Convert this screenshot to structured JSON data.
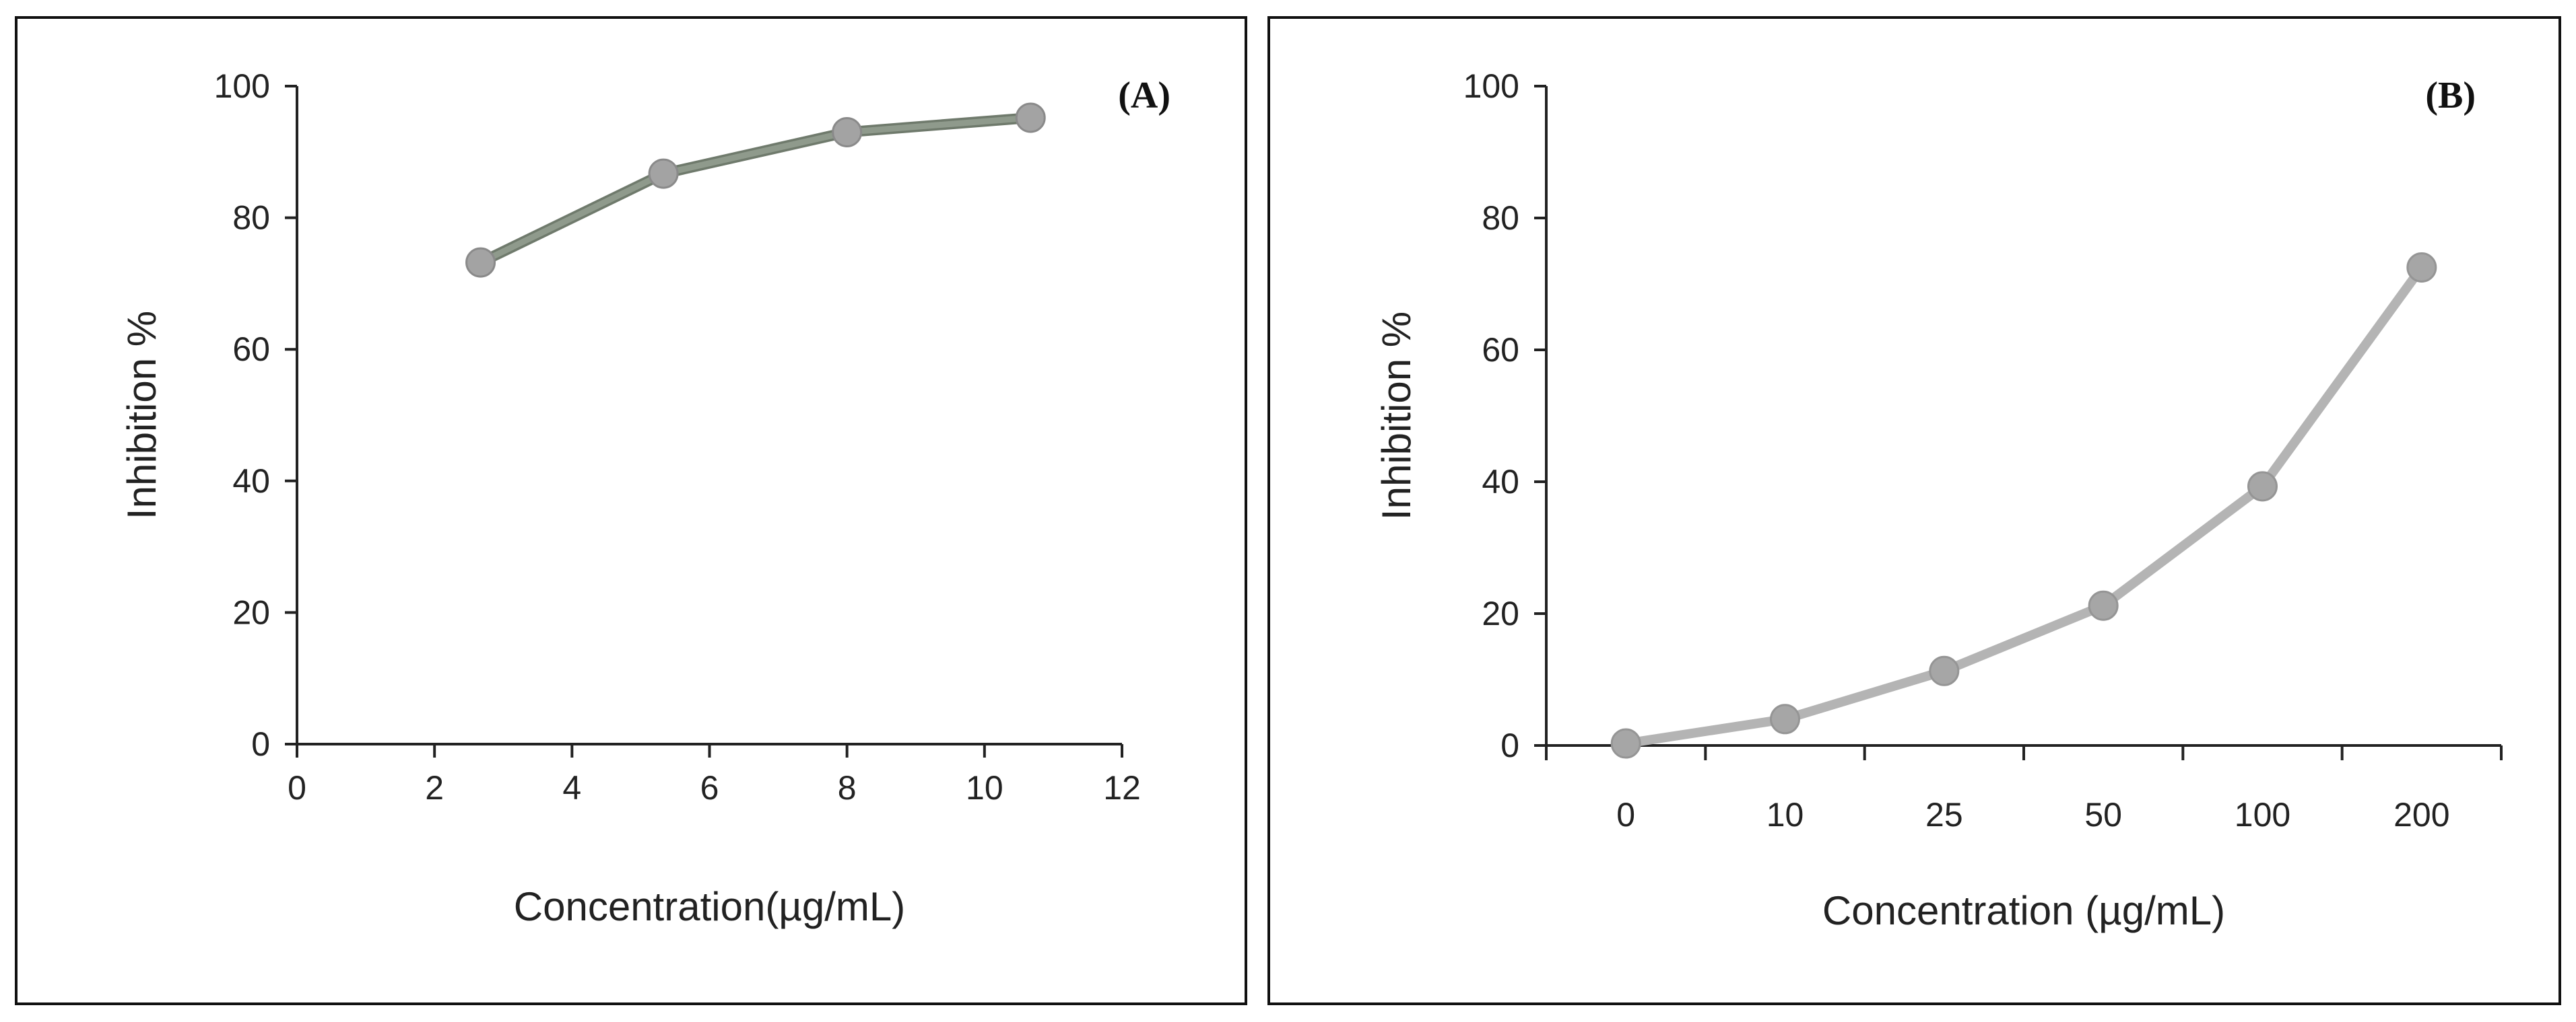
{
  "chart_data": [
    {
      "type": "line",
      "panel_label": "(A)",
      "xlabel": "Concentration(µg/mL)",
      "ylabel": "Inhibition %",
      "xlim": [
        0,
        12
      ],
      "ylim": [
        0,
        100
      ],
      "x_ticks": [
        "0",
        "2",
        "4",
        "6",
        "8",
        "10",
        "12"
      ],
      "y_ticks": [
        "0",
        "20",
        "40",
        "60",
        "80",
        "100"
      ],
      "series": [
        {
          "name": "Inhibition",
          "color": "#8f9a8c",
          "x": [
            2.67,
            5.33,
            8.0,
            10.67
          ],
          "values": [
            73.2,
            86.7,
            93.0,
            95.2
          ]
        }
      ]
    },
    {
      "type": "line",
      "panel_label": "(B)",
      "xlabel": "Concentration (µg/mL)",
      "ylabel": "Inhibition %",
      "ylim": [
        0,
        100
      ],
      "categories": [
        "0",
        "10",
        "25",
        "50",
        "100",
        "200"
      ],
      "y_ticks": [
        "0",
        "20",
        "40",
        "60",
        "80",
        "100"
      ],
      "series": [
        {
          "name": "Inhibition",
          "color": "#b4b4b4",
          "values": [
            0.3,
            4.0,
            11.3,
            21.2,
            39.3,
            72.5
          ]
        }
      ]
    }
  ]
}
